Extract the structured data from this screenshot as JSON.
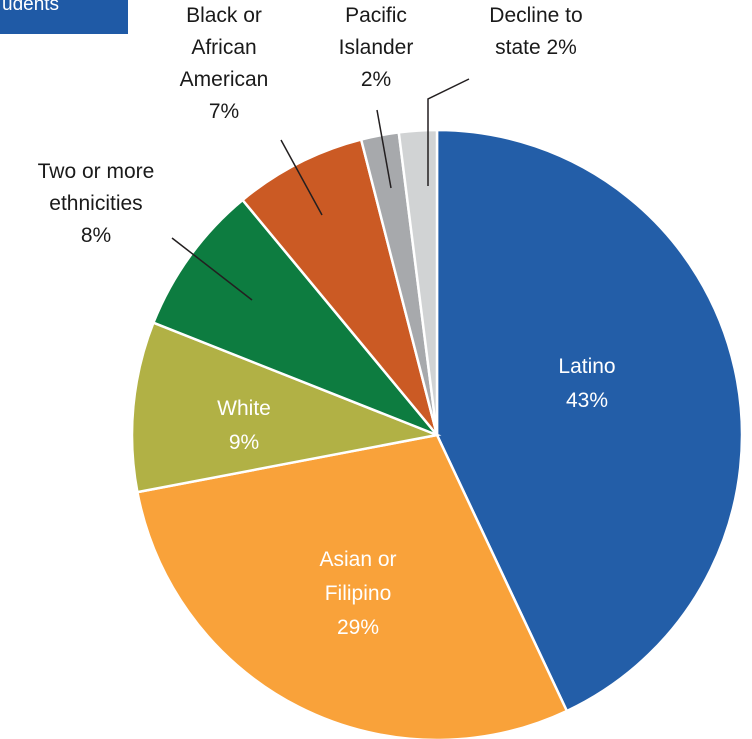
{
  "header": {
    "title_fragment": "udents"
  },
  "chart_data": {
    "type": "pie",
    "title": "",
    "slices": [
      {
        "label": "Latino",
        "value": 43,
        "pct_label": "43%",
        "color": "#235ea8",
        "label_color": "#ffffff"
      },
      {
        "label": "Asian or Filipino",
        "value": 29,
        "pct_label": "29%",
        "color": "#f9a23a",
        "label_color": "#ffffff"
      },
      {
        "label": "White",
        "value": 9,
        "pct_label": "9%",
        "color": "#b1b145",
        "label_color": "#ffffff"
      },
      {
        "label": "Two or more ethnicities",
        "value": 8,
        "pct_label": "8%",
        "color": "#0d7c40",
        "label_color": "#1a1a1a"
      },
      {
        "label": "Black or African American",
        "value": 7,
        "pct_label": "7%",
        "color": "#cb5a24",
        "label_color": "#1a1a1a"
      },
      {
        "label": "Pacific Islander",
        "value": 2,
        "pct_label": "2%",
        "color": "#a7a9ac",
        "label_color": "#1a1a1a"
      },
      {
        "label": "Decline to state",
        "value": 2,
        "pct_label": "2%",
        "color": "#d1d3d4",
        "label_color": "#1a1a1a"
      }
    ]
  }
}
